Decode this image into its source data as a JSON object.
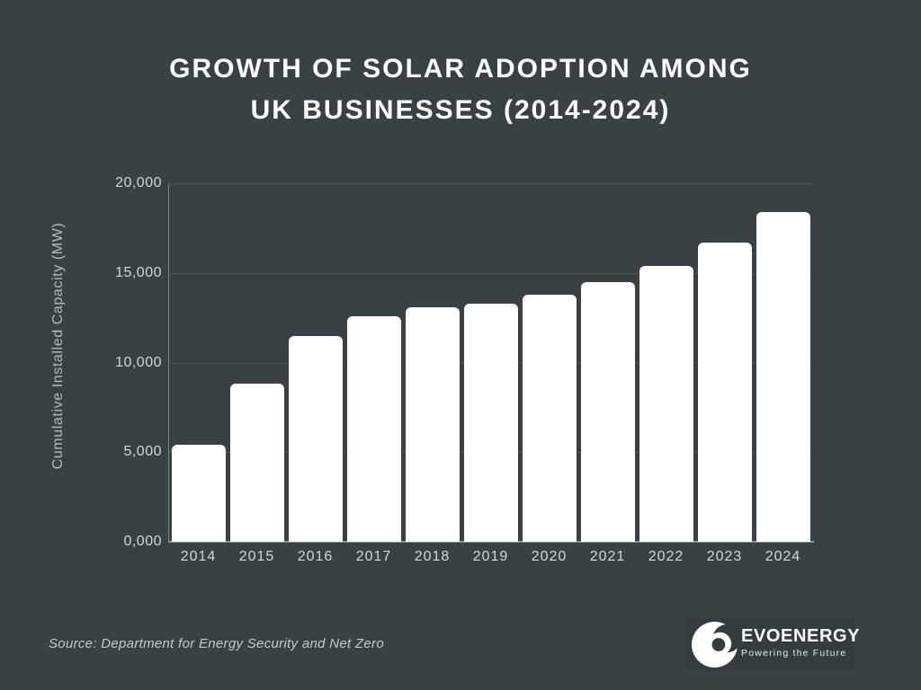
{
  "title": {
    "line1": "GROWTH OF SOLAR ADOPTION AMONG",
    "line2": "UK BUSINESSES (2014-2024)"
  },
  "chart_data": {
    "type": "bar",
    "title": "Growth of Solar Adoption Among UK Businesses (2014-2024)",
    "categories": [
      "2014",
      "2015",
      "2016",
      "2017",
      "2018",
      "2019",
      "2020",
      "2021",
      "2022",
      "2023",
      "2024"
    ],
    "values": [
      5400,
      8800,
      11500,
      12600,
      13100,
      13300,
      13800,
      14500,
      15400,
      16700,
      18400
    ],
    "xlabel": "",
    "ylabel": "Cumulative Installed Capacity (MW)",
    "ylim": [
      0,
      20000
    ],
    "y_ticks": [
      {
        "value": 0,
        "label": "0,000"
      },
      {
        "value": 5000,
        "label": "5,000"
      },
      {
        "value": 10000,
        "label": "10,000"
      },
      {
        "value": 15000,
        "label": "15,000"
      },
      {
        "value": 20000,
        "label": "20,000"
      }
    ],
    "grid": true,
    "legend": false,
    "bar_color": "#ffffff",
    "background_color": "#3a4145",
    "gridline_color": "#4b5356"
  },
  "footer": {
    "source": "Source: Department for Energy Security and Net Zero",
    "logo": {
      "wordmark": "EVOENERGY",
      "tagline": "Powering the Future"
    }
  }
}
